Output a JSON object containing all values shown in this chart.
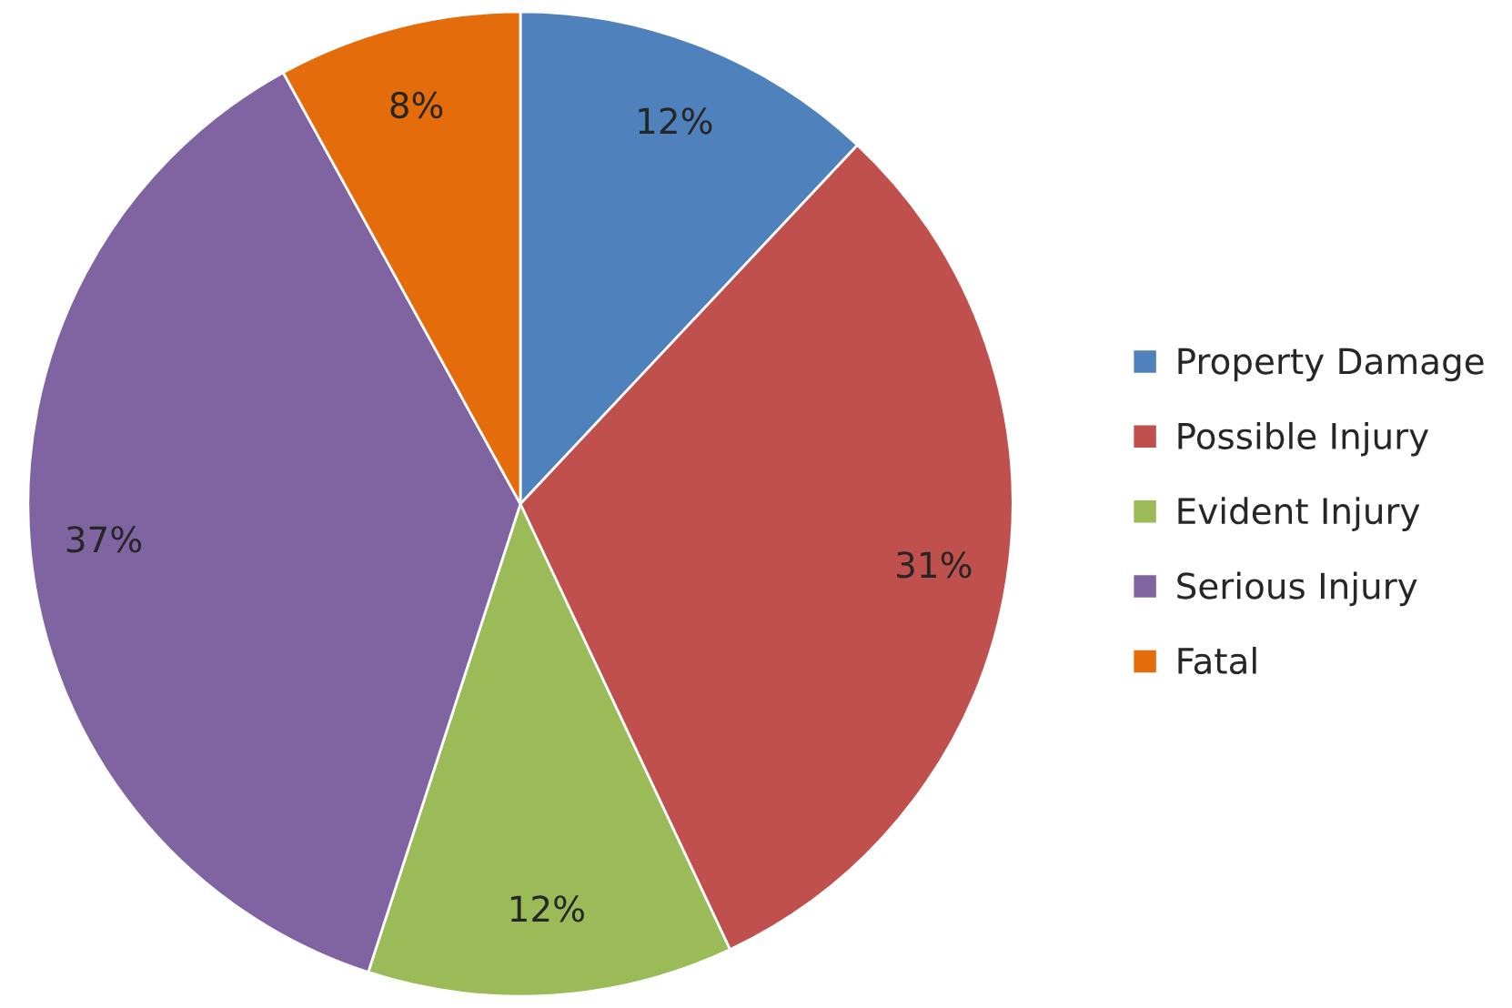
{
  "chart_data": {
    "type": "pie",
    "categories": [
      "Property Damage",
      "Possible Injury",
      "Evident Injury",
      "Serious Injury",
      "Fatal"
    ],
    "values": [
      12,
      31,
      12,
      37,
      8
    ],
    "colors": [
      "#4f81bd",
      "#c0504d",
      "#9bbb59",
      "#8064a2",
      "#e46c0a"
    ],
    "value_labels": [
      "12%",
      "31%",
      "12%",
      "37%",
      "8%"
    ],
    "legend": "right"
  }
}
